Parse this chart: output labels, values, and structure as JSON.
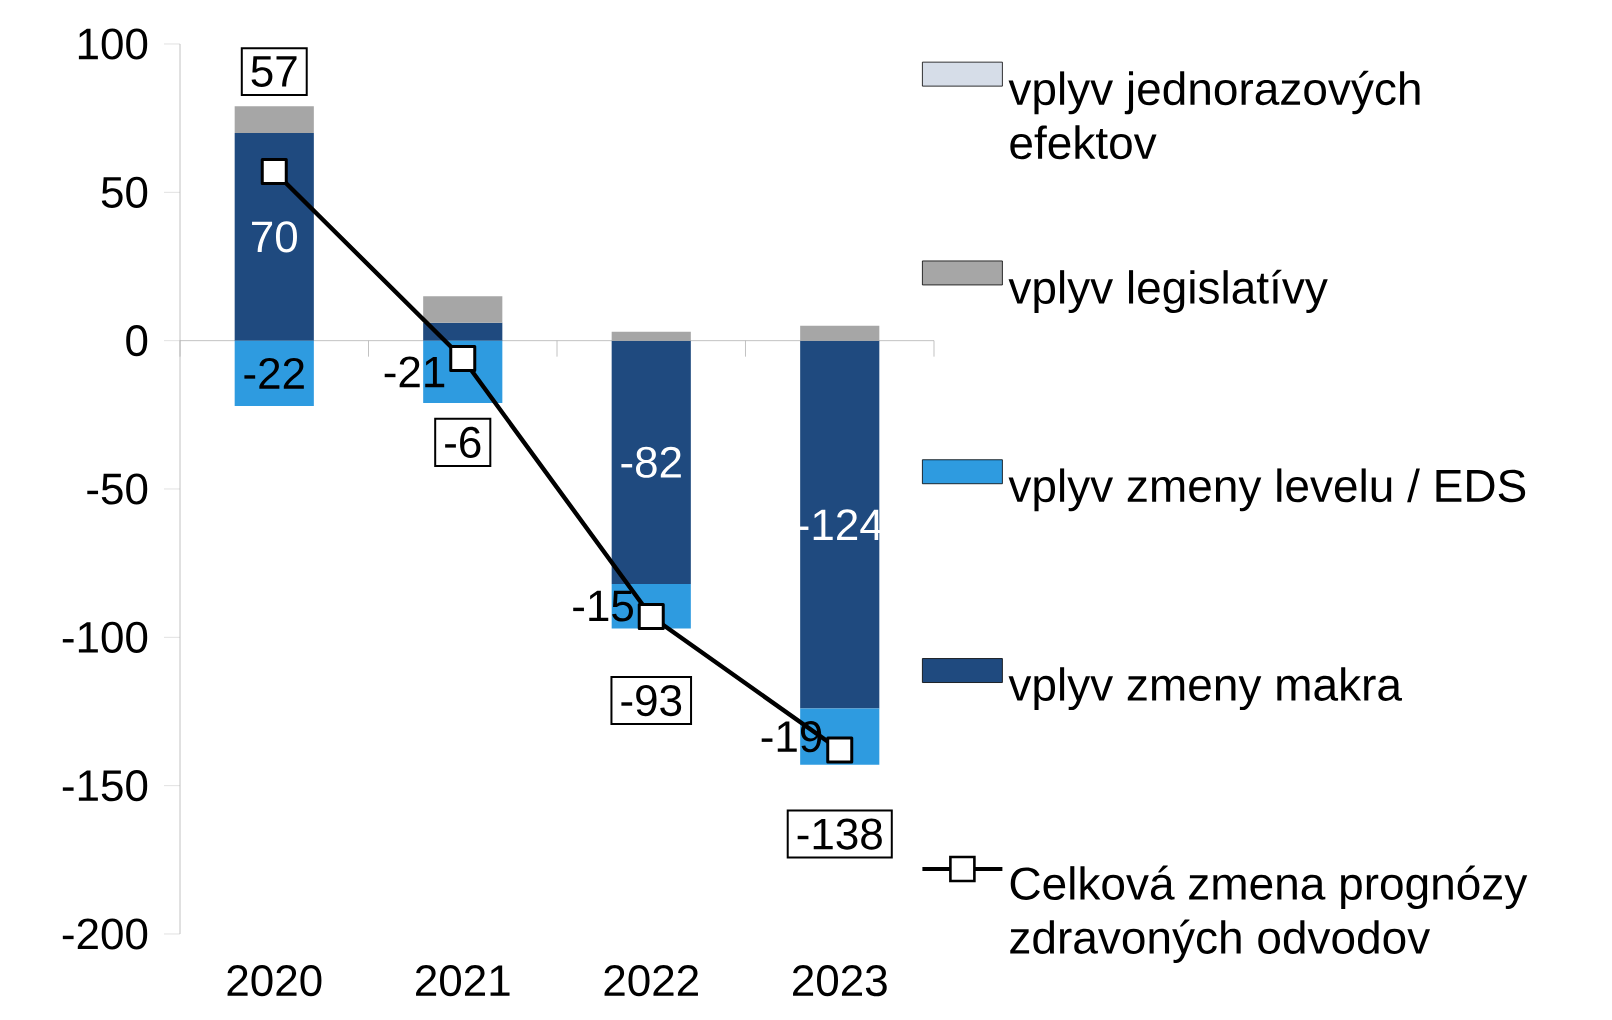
{
  "chart_data": {
    "type": "bar",
    "stacked": true,
    "categories": [
      "2020",
      "2021",
      "2022",
      "2023"
    ],
    "series": [
      {
        "name": "vplyv zmeny makra",
        "color": "#1f4a7f",
        "values": [
          70,
          6,
          -82,
          -124
        ],
        "value_labels": [
          "70",
          null,
          "-82",
          "-124"
        ]
      },
      {
        "name": "vplyv zmeny levelu / EDS",
        "color": "#2e9be0",
        "values": [
          -22,
          -21,
          -15,
          -19
        ],
        "value_labels": [
          "-22",
          "-21",
          "-15",
          "-19"
        ]
      },
      {
        "name": "vplyv legislatívy",
        "color": "#a6a6a6",
        "values": [
          9,
          9,
          3,
          5
        ]
      },
      {
        "name": "vplyv jednorazových efektov",
        "color": "#d6dde8",
        "values": [
          0,
          0,
          0,
          0
        ]
      },
      {
        "name": "Celková zmena prognózy zdravoných odvodov",
        "type": "line",
        "color": "#000000",
        "marker": "square",
        "values": [
          57,
          -6,
          -93,
          -138
        ],
        "value_labels": [
          "57",
          "-6",
          "-93",
          "-138"
        ]
      }
    ],
    "ylim": [
      -200,
      100
    ],
    "yticks": [
      -200,
      -150,
      -100,
      -50,
      0,
      50,
      100
    ],
    "legend": "right"
  }
}
